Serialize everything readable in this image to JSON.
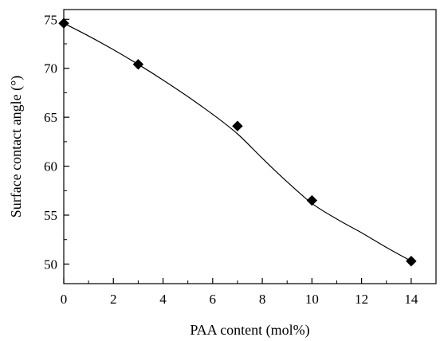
{
  "chart_data": {
    "type": "scatter",
    "title": "",
    "xlabel": "PAA content (mol%)",
    "ylabel": "Surface contact angle (°)",
    "xlim": [
      0,
      15
    ],
    "ylim": [
      48,
      76
    ],
    "x_ticks": [
      0,
      2,
      4,
      6,
      8,
      10,
      12,
      14
    ],
    "y_ticks": [
      50,
      55,
      60,
      65,
      70,
      75
    ],
    "grid": false,
    "legend": "none",
    "series": [
      {
        "marker": "diamond",
        "color": "#000000",
        "points": [
          {
            "x": 0,
            "y": 74.6
          },
          {
            "x": 3,
            "y": 70.4
          },
          {
            "x": 7,
            "y": 64.1
          },
          {
            "x": 10,
            "y": 56.5
          },
          {
            "x": 14,
            "y": 50.3
          }
        ]
      }
    ],
    "trend_curve": {
      "color": "#000000",
      "points": [
        {
          "x": 0,
          "y": 74.6
        },
        {
          "x": 1,
          "y": 73.3
        },
        {
          "x": 2,
          "y": 71.9
        },
        {
          "x": 3,
          "y": 70.4
        },
        {
          "x": 4,
          "y": 68.8
        },
        {
          "x": 5,
          "y": 67.1
        },
        {
          "x": 6,
          "y": 65.3
        },
        {
          "x": 7,
          "y": 63.3
        },
        {
          "x": 8,
          "y": 60.8
        },
        {
          "x": 9,
          "y": 58.4
        },
        {
          "x": 10,
          "y": 56.2
        },
        {
          "x": 11,
          "y": 54.6
        },
        {
          "x": 12,
          "y": 53.2
        },
        {
          "x": 13,
          "y": 51.7
        },
        {
          "x": 14,
          "y": 50.3
        }
      ]
    }
  }
}
